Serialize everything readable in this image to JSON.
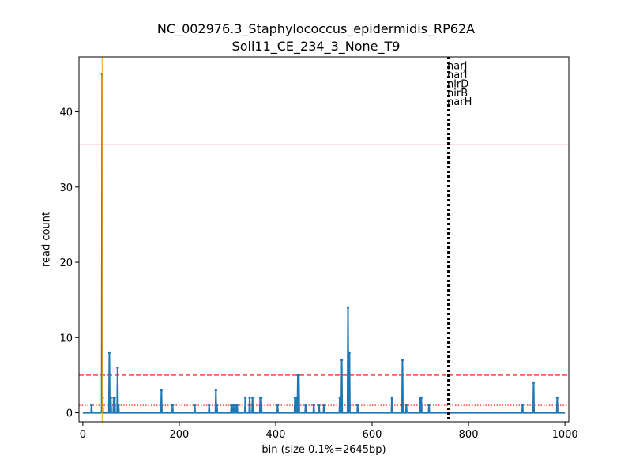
{
  "chart_data": {
    "type": "line",
    "title": [
      "NC_002976.3_Staphylococcus_epidermidis_RP62A",
      "Soil11_CE_234_3_None_T9"
    ],
    "xlabel": "bin (size 0.1%=2645bp)",
    "ylabel": "read count",
    "xlim": [
      -8,
      1008
    ],
    "ylim": [
      -1.2,
      47.3
    ],
    "x_ticks": [
      0,
      200,
      400,
      600,
      800,
      1000
    ],
    "y_ticks": [
      0,
      10,
      20,
      30,
      40
    ],
    "grid": false,
    "series": [
      {
        "color": "#1f77b4",
        "baseline": 0,
        "points": [
          [
            18,
            1
          ],
          [
            40,
            45
          ],
          [
            41,
            2
          ],
          [
            55,
            8
          ],
          [
            58,
            2
          ],
          [
            64,
            2
          ],
          [
            66,
            2
          ],
          [
            72,
            6
          ],
          [
            74,
            1
          ],
          [
            163,
            3
          ],
          [
            186,
            1
          ],
          [
            232,
            1
          ],
          [
            262,
            1
          ],
          [
            276,
            3
          ],
          [
            278,
            1
          ],
          [
            308,
            1
          ],
          [
            312,
            1
          ],
          [
            316,
            1
          ],
          [
            320,
            1
          ],
          [
            337,
            2
          ],
          [
            346,
            2
          ],
          [
            352,
            2
          ],
          [
            368,
            2
          ],
          [
            370,
            2
          ],
          [
            404,
            1
          ],
          [
            440,
            2
          ],
          [
            443,
            2
          ],
          [
            446,
            5
          ],
          [
            448,
            5
          ],
          [
            462,
            1
          ],
          [
            479,
            1
          ],
          [
            490,
            1
          ],
          [
            500,
            1
          ],
          [
            533,
            2
          ],
          [
            537,
            7
          ],
          [
            550,
            14
          ],
          [
            553,
            8
          ],
          [
            570,
            1
          ],
          [
            641,
            2
          ],
          [
            663,
            7
          ],
          [
            671,
            1
          ],
          [
            700,
            2
          ],
          [
            702,
            2
          ],
          [
            718,
            1
          ],
          [
            912,
            1
          ],
          [
            935,
            4
          ],
          [
            984,
            2
          ]
        ]
      }
    ],
    "hlines": [
      {
        "y": 35.6,
        "style": "solid",
        "color": "#ff0000"
      },
      {
        "y": 5,
        "style": "dashed",
        "color": "#ff0000"
      },
      {
        "y": 1,
        "style": "dotted",
        "color": "#ff0000"
      }
    ],
    "vlines": [
      {
        "x": 40,
        "style": "solid",
        "color": "#ffa500"
      },
      {
        "x": 759,
        "style": "dotted",
        "color": "#000000"
      }
    ],
    "annotations": [
      {
        "x": 759,
        "y": 46.2,
        "text": "narJ"
      },
      {
        "x": 759,
        "y": 45.0,
        "text": "narI"
      },
      {
        "x": 759,
        "y": 43.8,
        "text": "nirD"
      },
      {
        "x": 759,
        "y": 42.6,
        "text": "nirB"
      },
      {
        "x": 759,
        "y": 41.4,
        "text": "narH"
      }
    ]
  }
}
